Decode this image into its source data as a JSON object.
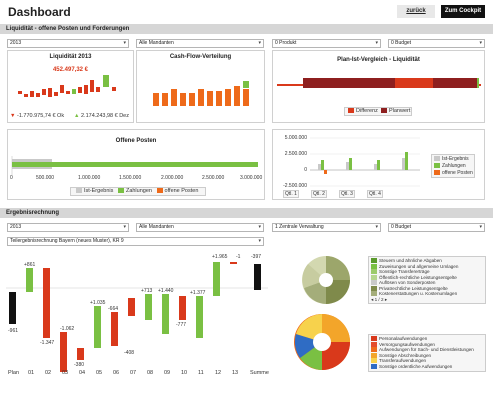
{
  "header": {
    "title": "Dashboard",
    "back_label": "zurück",
    "cockpit_label": "Zum Cockpit"
  },
  "section1": {
    "title": "Liquidität - offene Posten und Forderungen",
    "filters": [
      "2013",
      "Alle Mandanten",
      "0 Produkt",
      "0 Budget"
    ],
    "liquiditaet": {
      "title": "Liquidität 2013",
      "value": "452.497,32 €",
      "left_value": "-1.770.975,74 € Ok",
      "right_value": "2.174.243,98 € Dez"
    },
    "cashflow": {
      "title": "Cash-Flow-Verteilung"
    },
    "planist": {
      "title": "Plan-Ist-Vergleich - Liquidität",
      "legend": [
        "Differenz",
        "Planwert"
      ]
    },
    "offene_posten": {
      "title": "Offene Posten",
      "ticks": [
        "0",
        "500.000",
        "1.000.000",
        "1.500.000",
        "2.000.000",
        "2.500.000",
        "3.000.000"
      ],
      "legend": [
        "Ist-Ergebnis",
        "Zahlungen",
        "offene Posten"
      ]
    },
    "quarters": {
      "yticks": [
        "5.000.000",
        "2.500.000",
        "0",
        "-2.500.000"
      ],
      "xticks": [
        "Qtl. 1",
        "Qtl. 2",
        "Qtl. 3",
        "Qtl. 4"
      ],
      "legend": [
        "Ist-Ergebnis",
        "Zahlungen",
        "offene Posten"
      ]
    }
  },
  "section2": {
    "title": "Ergebnisrechnung",
    "filters": [
      "2013",
      "Alle Mandanten",
      "1 Zentrale Verwaltung",
      "0 Budget"
    ],
    "sub_filter": "Teilergebnisrechnung Bayern (neues Muster), KR 9",
    "waterfall": {
      "categories": [
        "Plan",
        "01",
        "02",
        "03",
        "04",
        "05",
        "06",
        "07",
        "08",
        "09",
        "10",
        "11",
        "12",
        "13",
        "Summe"
      ],
      "labels": [
        "-961",
        "+861",
        "-1.347",
        "-1.062",
        "-380",
        "+1.035",
        "-664",
        "-408",
        "+713",
        "+1.440",
        "-777",
        "+1.377",
        "+1.965",
        "-1",
        "-397"
      ]
    },
    "pie1_legend": [
      "Steuern und ähnliche Abgaben",
      "Zuweisungen und allgemeine Umlagen",
      "Sonstige Transfererträge",
      "Öffentlich-rechtliche Leistungsentgelte",
      "Auflösen von Sonderposten",
      "Privatrechtliche Leistungsentgelte",
      "Kostenerstattungen u. Kostenumlagen"
    ],
    "pie1_pager": "1 / 2",
    "pie2_legend": [
      "Personalaufwendungen",
      "Versorgungsaufwendungen",
      "Aufwendungen für Sach- und Dienstleistungen",
      "Sonstige Abschreibungen",
      "Transferaufwendungen",
      "Sonstige ordentliche Aufwendungen"
    ]
  },
  "colors": {
    "green": "#7ac043",
    "red": "#d9391b",
    "orange": "#ee6a1a",
    "darkred": "#8e1f1f",
    "grey": "#c9c9c9",
    "black": "#111111"
  }
}
